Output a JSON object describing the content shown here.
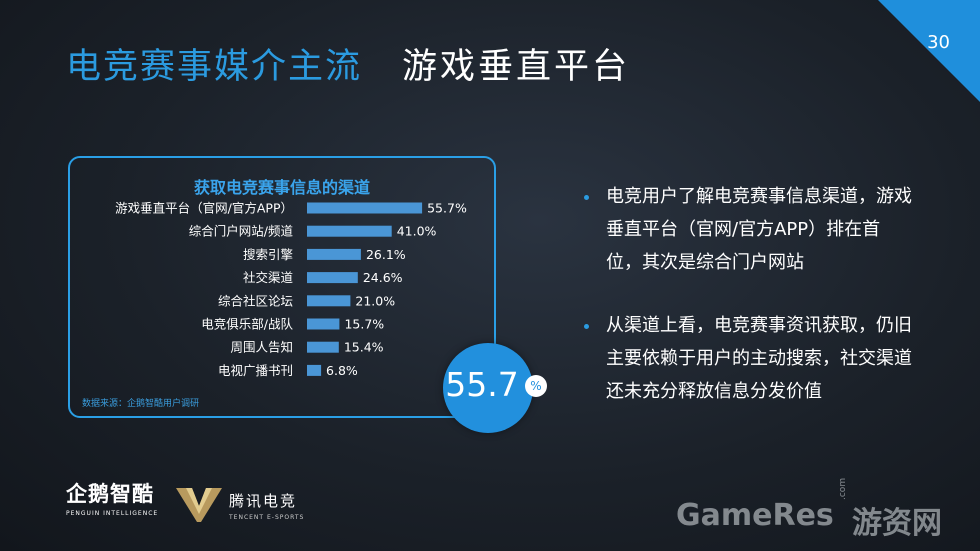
{
  "slide": {
    "title_main": "电竞赛事媒介主流",
    "title_sub": "游戏垂直平台",
    "page_number": "30",
    "accent_color": "#2b9be0"
  },
  "chart_data": {
    "type": "bar",
    "orientation": "horizontal",
    "title": "获取电竞赛事信息的渠道",
    "categories": [
      "游戏垂直平台（官网/官方APP）",
      "综合门户网站/频道",
      "搜索引擎",
      "社交渠道",
      "综合社区论坛",
      "电竞俱乐部/战队",
      "周围人告知",
      "电视广播书刊"
    ],
    "values": [
      55.7,
      41.0,
      26.1,
      24.6,
      21.0,
      15.7,
      15.4,
      6.8
    ],
    "value_labels": [
      "55.7%",
      "41.0%",
      "26.1%",
      "24.6%",
      "21.0%",
      "15.7%",
      "15.4%",
      "6.8%"
    ],
    "unit": "%",
    "bar_color": "#4a96d6",
    "source": "数据来源：企鹅智酷用户调研"
  },
  "highlight": {
    "value": "55.7",
    "unit": "%"
  },
  "bullets": [
    "电竞用户了解电竞赛事信息渠道，游戏垂直平台（官网/官方APP）排在首位，其次是综合门户网站",
    "从渠道上看，电竞赛事资讯获取，仍旧主要依赖于用户的主动搜索，社交渠道还未充分释放信息分发价值"
  ],
  "logos": {
    "penguin_name": "企鹅智酷",
    "penguin_sub": "PENGUIN INTELLIGENCE",
    "tencent_name": "腾讯电竞",
    "tencent_sub": "TENCENT E-SPORTS"
  },
  "watermark": {
    "text": "GameRes",
    "com": ".com",
    "cn": "游资网"
  }
}
